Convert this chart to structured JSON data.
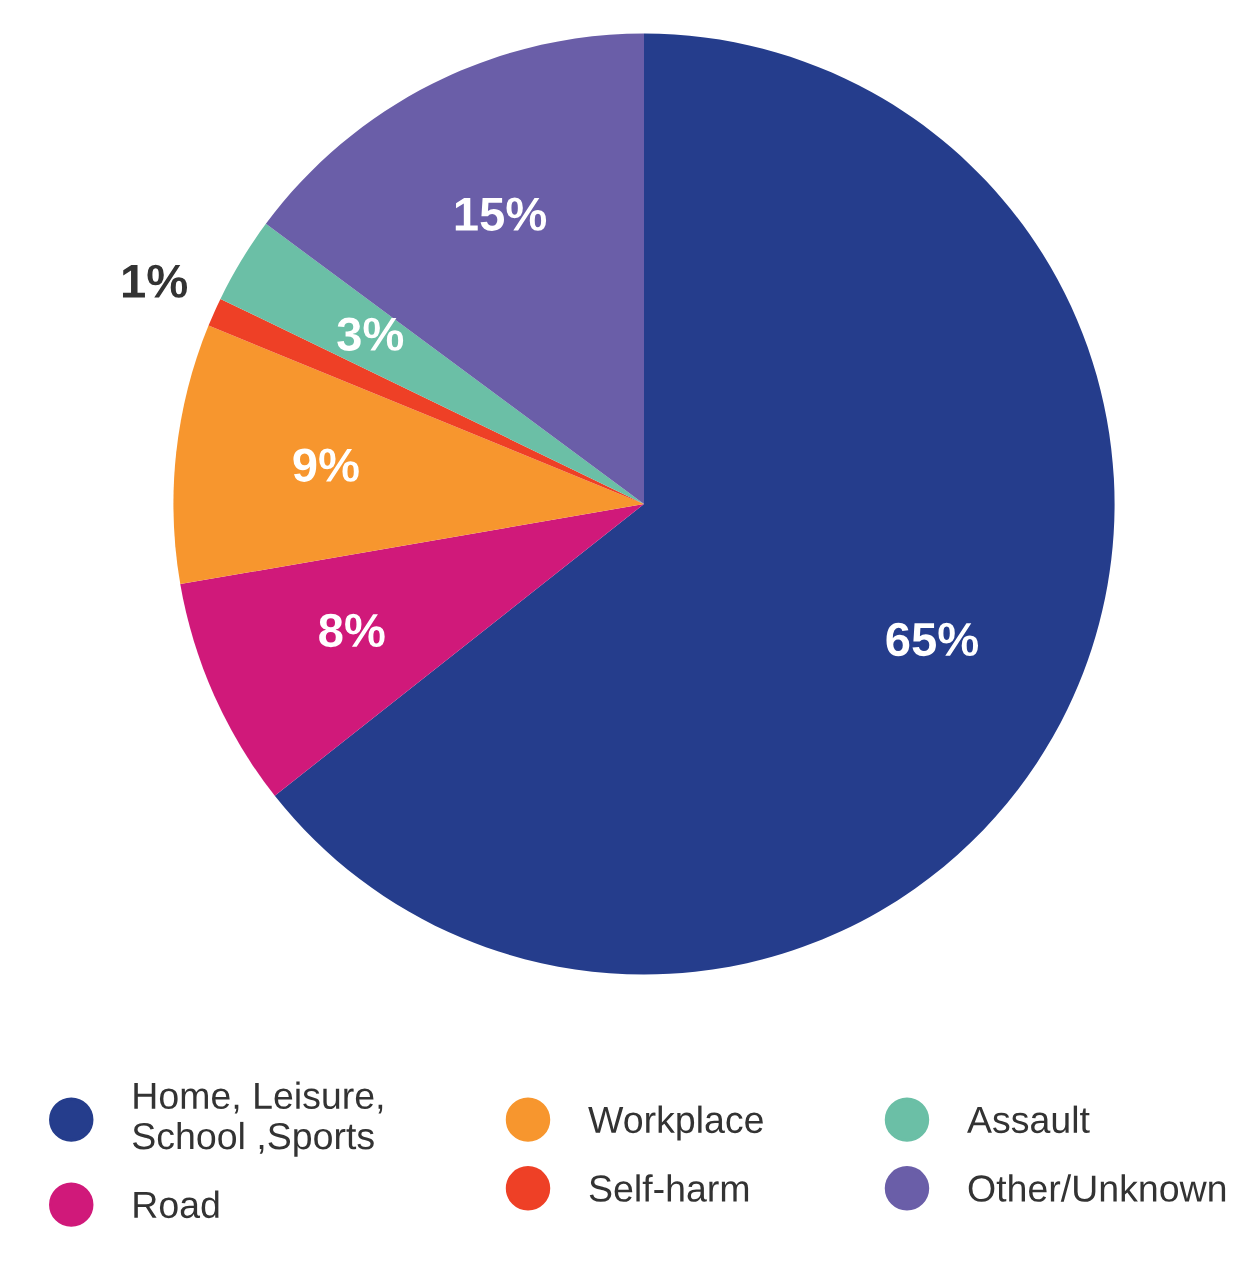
{
  "chart_data": {
    "type": "pie",
    "categories": [
      "Home, Leisure,\nSchool ,Sports",
      "Road",
      "Workplace",
      "Self-harm",
      "Assault",
      "Other/Unknown"
    ],
    "values": [
      65,
      8,
      9,
      1,
      3,
      15
    ],
    "value_labels": [
      "65%",
      "8%",
      "9%",
      "1%",
      "3%",
      "15%"
    ],
    "colors": [
      "#253d8c",
      "#d0197a",
      "#f7962e",
      "#ee4026",
      "#6bbfa6",
      "#6a5ea8"
    ],
    "legend": "bottom"
  }
}
